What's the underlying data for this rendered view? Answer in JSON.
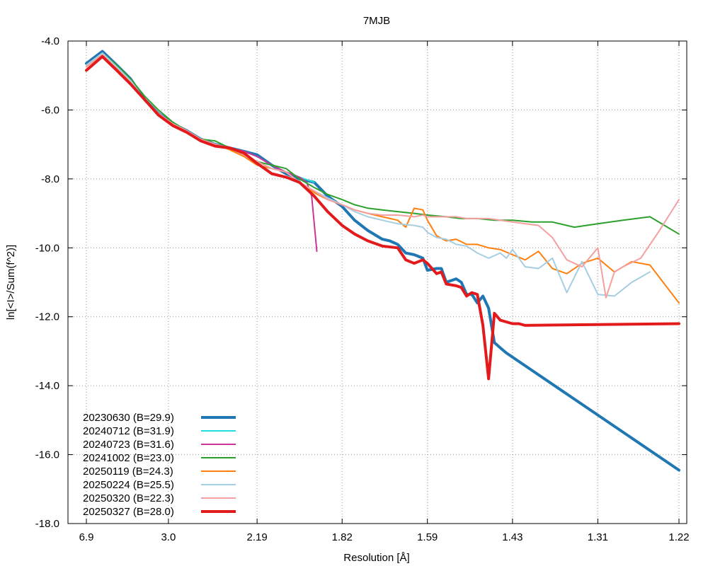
{
  "chart_data": {
    "type": "line",
    "title": "7MJB",
    "xlabel": "Resolution [Å]",
    "ylabel": "ln[<I>/Sum(f^2)]",
    "xscale": "1/d^2",
    "x_tick_labels": [
      "6.9",
      "3.0",
      "2.19",
      "1.82",
      "1.59",
      "1.43",
      "1.31",
      "1.22"
    ],
    "y_tick_labels": [
      "-4.0",
      "-6.0",
      "-8.0",
      "-10.0",
      "-12.0",
      "-14.0",
      "-16.0",
      "-18.0"
    ],
    "yticks": [
      -4,
      -6,
      -8,
      -10,
      -12,
      -14,
      -16,
      -18
    ],
    "ylim": [
      -18,
      -4
    ],
    "xlim_resolution": [
      6.9,
      1.22
    ],
    "grid": true,
    "legend_position": "bottom-left",
    "series": [
      {
        "name": "20230630 (B=29.9)",
        "color": "#1f77b4",
        "width": 4,
        "x": [
          6.9,
          5.09,
          4.29,
          3.79,
          3.43,
          3.16,
          2.94,
          2.76,
          2.61,
          2.48,
          2.37,
          2.27,
          2.19,
          2.11,
          2.04,
          1.98,
          1.92,
          1.87,
          1.82,
          1.78,
          1.74,
          1.7,
          1.68,
          1.66,
          1.64,
          1.62,
          1.6,
          1.59,
          1.57,
          1.56,
          1.55,
          1.53,
          1.52,
          1.51,
          1.5,
          1.49,
          1.48,
          1.47,
          1.46,
          1.45,
          1.44,
          1.22
        ],
        "values": [
          -4.65,
          -4.3,
          -4.7,
          -5.1,
          -5.7,
          -6.1,
          -6.4,
          -6.6,
          -6.85,
          -7.0,
          -7.1,
          -7.2,
          -7.3,
          -7.6,
          -7.85,
          -8.0,
          -8.1,
          -8.5,
          -8.8,
          -9.2,
          -9.5,
          -9.75,
          -9.8,
          -9.9,
          -10.15,
          -10.2,
          -10.3,
          -10.65,
          -10.6,
          -10.6,
          -11.0,
          -10.9,
          -11.0,
          -11.35,
          -11.35,
          -11.6,
          -11.4,
          -11.75,
          -12.75,
          -12.9,
          -13.05,
          -16.45
        ]
      },
      {
        "name": "20240712 (B=31.9)",
        "color": "#22dddd",
        "width": 2,
        "x": [
          6.9,
          5.09,
          4.29,
          3.79,
          3.43,
          3.16,
          2.94,
          2.76,
          2.61,
          2.48,
          2.37,
          2.27,
          2.19,
          2.11,
          2.04,
          1.98,
          1.92
        ],
        "values": [
          -4.7,
          -4.35,
          -4.75,
          -5.15,
          -5.7,
          -6.1,
          -6.4,
          -6.6,
          -6.85,
          -7.0,
          -7.1,
          -7.2,
          -7.35,
          -7.6,
          -7.8,
          -7.95,
          -8.1
        ]
      },
      {
        "name": "20240723 (B=31.6)",
        "color": "#cc3399",
        "width": 2,
        "x": [
          6.9,
          5.09,
          4.29,
          3.79,
          3.43,
          3.16,
          2.94,
          2.76,
          2.61,
          2.48,
          2.37,
          2.27,
          2.19,
          2.11,
          2.04,
          1.98,
          1.95,
          1.93,
          1.91
        ],
        "values": [
          -4.7,
          -4.35,
          -4.75,
          -5.15,
          -5.7,
          -6.1,
          -6.4,
          -6.6,
          -6.85,
          -7.0,
          -7.1,
          -7.2,
          -7.35,
          -7.6,
          -7.8,
          -7.95,
          -8.1,
          -8.5,
          -10.1
        ]
      },
      {
        "name": "20241002 (B=23.0)",
        "color": "#2ca02c",
        "width": 2,
        "x": [
          6.9,
          5.09,
          4.29,
          3.79,
          3.43,
          3.16,
          2.94,
          2.76,
          2.61,
          2.48,
          2.37,
          2.27,
          2.19,
          2.11,
          2.04,
          1.98,
          1.92,
          1.87,
          1.82,
          1.78,
          1.74,
          1.7,
          1.66,
          1.62,
          1.59,
          1.55,
          1.52,
          1.49,
          1.46,
          1.43,
          1.4,
          1.37,
          1.34,
          1.31,
          1.28,
          1.25,
          1.22
        ],
        "values": [
          -4.7,
          -4.35,
          -4.7,
          -5.1,
          -5.6,
          -6.0,
          -6.35,
          -6.6,
          -6.85,
          -6.9,
          -7.1,
          -7.3,
          -7.5,
          -7.6,
          -7.7,
          -8.0,
          -8.25,
          -8.45,
          -8.6,
          -8.75,
          -8.85,
          -8.9,
          -8.95,
          -9.0,
          -9.05,
          -9.1,
          -9.15,
          -9.15,
          -9.2,
          -9.2,
          -9.25,
          -9.25,
          -9.4,
          -9.3,
          -9.2,
          -9.1,
          -9.6
        ]
      },
      {
        "name": "20250119 (B=24.3)",
        "color": "#ff7f0e",
        "width": 2,
        "x": [
          6.9,
          5.09,
          4.29,
          3.79,
          3.43,
          3.16,
          2.94,
          2.76,
          2.61,
          2.48,
          2.37,
          2.27,
          2.19,
          2.11,
          2.04,
          1.98,
          1.92,
          1.87,
          1.82,
          1.78,
          1.74,
          1.7,
          1.66,
          1.64,
          1.62,
          1.6,
          1.59,
          1.57,
          1.55,
          1.53,
          1.51,
          1.49,
          1.47,
          1.45,
          1.43,
          1.41,
          1.39,
          1.37,
          1.35,
          1.33,
          1.31,
          1.29,
          1.27,
          1.25,
          1.22
        ],
        "values": [
          -4.75,
          -4.4,
          -4.8,
          -5.2,
          -5.7,
          -6.1,
          -6.4,
          -6.65,
          -6.9,
          -7.0,
          -7.15,
          -7.35,
          -7.6,
          -7.7,
          -7.8,
          -8.1,
          -8.4,
          -8.6,
          -8.75,
          -8.9,
          -9.0,
          -9.1,
          -9.2,
          -9.4,
          -8.85,
          -8.9,
          -9.2,
          -9.65,
          -9.8,
          -9.75,
          -9.9,
          -9.9,
          -10.0,
          -10.05,
          -10.2,
          -10.35,
          -10.1,
          -10.6,
          -10.75,
          -10.45,
          -10.3,
          -10.7,
          -10.4,
          -10.5,
          -11.6
        ]
      },
      {
        "name": "20250224 (B=25.5)",
        "color": "#a6cee3",
        "width": 2,
        "x": [
          6.9,
          5.09,
          4.29,
          3.79,
          3.43,
          3.16,
          2.94,
          2.76,
          2.61,
          2.48,
          2.37,
          2.27,
          2.19,
          2.11,
          2.04,
          1.98,
          1.92,
          1.87,
          1.82,
          1.78,
          1.74,
          1.7,
          1.66,
          1.62,
          1.6,
          1.59,
          1.57,
          1.55,
          1.53,
          1.51,
          1.49,
          1.47,
          1.45,
          1.44,
          1.43,
          1.41,
          1.39,
          1.37,
          1.35,
          1.33,
          1.31,
          1.29,
          1.27,
          1.25
        ],
        "values": [
          -4.7,
          -4.35,
          -4.75,
          -5.15,
          -5.7,
          -6.1,
          -6.4,
          -6.6,
          -6.85,
          -7.0,
          -7.1,
          -7.25,
          -7.5,
          -7.7,
          -7.8,
          -8.1,
          -8.35,
          -8.55,
          -8.75,
          -8.95,
          -9.1,
          -9.2,
          -9.3,
          -9.35,
          -9.4,
          -9.55,
          -9.7,
          -9.75,
          -9.9,
          -9.95,
          -10.15,
          -10.3,
          -10.15,
          -10.3,
          -10.05,
          -10.55,
          -10.6,
          -10.3,
          -11.3,
          -10.4,
          -11.35,
          -11.4,
          -11.0,
          -10.7
        ]
      },
      {
        "name": "20250320 (B=22.3)",
        "color": "#f4a0a0",
        "width": 2,
        "x": [
          6.9,
          5.09,
          4.29,
          3.79,
          3.43,
          3.16,
          2.94,
          2.76,
          2.61,
          2.48,
          2.37,
          2.27,
          2.19,
          2.11,
          2.04,
          1.98,
          1.92,
          1.87,
          1.82,
          1.78,
          1.74,
          1.7,
          1.66,
          1.62,
          1.6,
          1.59,
          1.57,
          1.55,
          1.53,
          1.51,
          1.49,
          1.47,
          1.45,
          1.43,
          1.41,
          1.39,
          1.37,
          1.35,
          1.33,
          1.31,
          1.3,
          1.29,
          1.28,
          1.26,
          1.24,
          1.22
        ],
        "values": [
          -4.75,
          -4.4,
          -4.8,
          -5.2,
          -5.7,
          -6.1,
          -6.4,
          -6.6,
          -6.85,
          -7.0,
          -7.1,
          -7.3,
          -7.5,
          -7.7,
          -7.8,
          -8.1,
          -8.35,
          -8.6,
          -8.75,
          -8.9,
          -9.0,
          -9.05,
          -9.05,
          -9.1,
          -9.05,
          -9.1,
          -9.1,
          -9.1,
          -9.1,
          -9.15,
          -9.15,
          -9.15,
          -9.2,
          -9.25,
          -9.3,
          -9.35,
          -9.7,
          -10.35,
          -10.55,
          -10.0,
          -11.45,
          -10.7,
          -10.55,
          -10.3,
          -9.5,
          -8.6
        ]
      },
      {
        "name": "20250327 (B=28.0)",
        "color": "#e31a1c",
        "width": 4,
        "x": [
          6.9,
          5.09,
          4.29,
          3.79,
          3.43,
          3.16,
          2.94,
          2.76,
          2.61,
          2.48,
          2.37,
          2.27,
          2.19,
          2.11,
          2.04,
          1.98,
          1.92,
          1.87,
          1.82,
          1.78,
          1.74,
          1.7,
          1.66,
          1.64,
          1.62,
          1.6,
          1.59,
          1.57,
          1.56,
          1.55,
          1.53,
          1.52,
          1.51,
          1.5,
          1.49,
          1.48,
          1.47,
          1.46,
          1.45,
          1.44,
          1.43,
          1.42,
          1.41,
          1.22
        ],
        "values": [
          -4.85,
          -4.45,
          -4.85,
          -5.25,
          -5.7,
          -6.15,
          -6.45,
          -6.65,
          -6.9,
          -7.05,
          -7.1,
          -7.25,
          -7.55,
          -7.85,
          -7.95,
          -8.1,
          -8.5,
          -8.95,
          -9.35,
          -9.6,
          -9.8,
          -9.95,
          -10.0,
          -10.35,
          -10.45,
          -10.35,
          -10.45,
          -10.75,
          -10.7,
          -11.05,
          -11.1,
          -11.15,
          -11.4,
          -11.3,
          -11.35,
          -12.25,
          -13.8,
          -11.9,
          -12.1,
          -12.15,
          -12.2,
          -12.2,
          -12.25,
          -12.2
        ]
      }
    ]
  }
}
